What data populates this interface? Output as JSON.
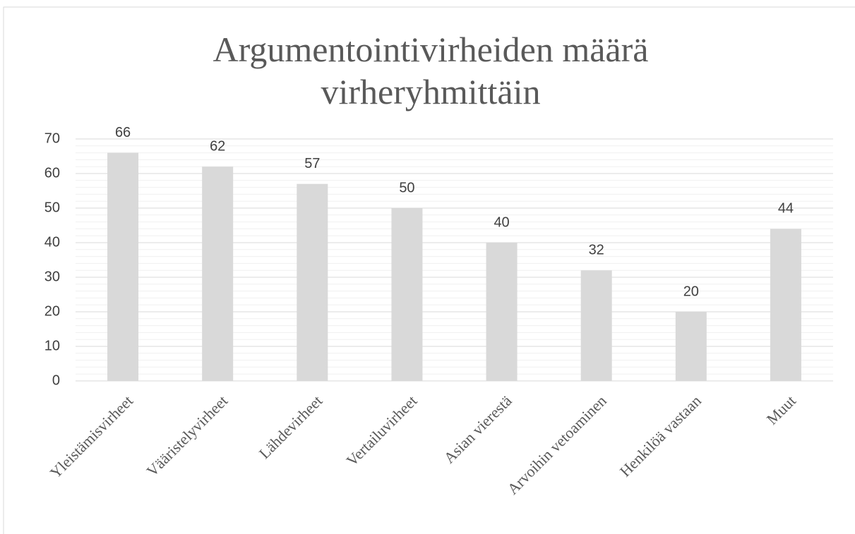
{
  "chart_data": {
    "type": "bar",
    "title": "Argumentointivirheiden määrä virheryhmittäin",
    "categories": [
      "Yleistämisvirheet",
      "Vääristelyvirheet",
      "Lähdevirheet",
      "Vertailuvirheet",
      "Asian vierestä",
      "Arvoihin vetoaminen",
      "Henkilöä vastaan",
      "Muut"
    ],
    "values": [
      66,
      62,
      57,
      50,
      40,
      32,
      20,
      44
    ],
    "color": "#d9d9d9",
    "ylim": [
      0,
      70
    ],
    "yticks": [
      0,
      10,
      20,
      30,
      40,
      50,
      60,
      70
    ],
    "minor_yticks": [
      2,
      4,
      6,
      8,
      12,
      14,
      16,
      18,
      22,
      24,
      26,
      28,
      32,
      34,
      36,
      38,
      42,
      44,
      46,
      48,
      52,
      54,
      56,
      58,
      62,
      64,
      66,
      68
    ],
    "grid": true,
    "data_labels": true
  }
}
